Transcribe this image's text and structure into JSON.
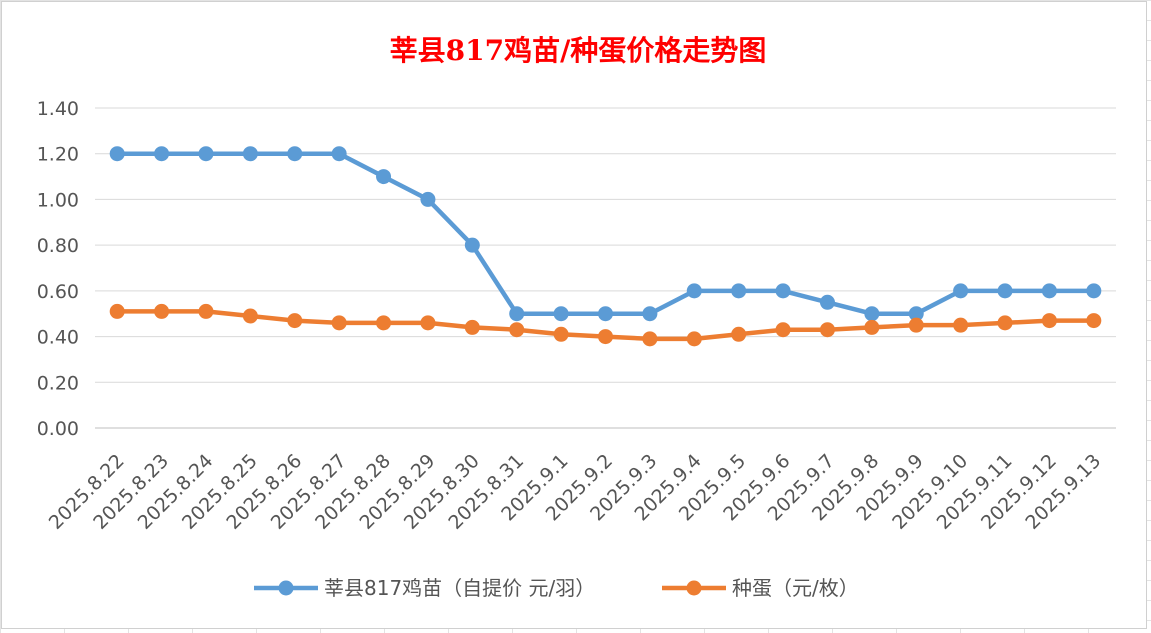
{
  "chart_data": {
    "type": "line",
    "title": "莘县817鸡苗/种蛋价格走势图",
    "categories": [
      "2025.8.22",
      "2025.8.23",
      "2025.8.24",
      "2025.8.25",
      "2025.8.26",
      "2025.8.27",
      "2025.8.28",
      "2025.8.29",
      "2025.8.30",
      "2025.8.31",
      "2025.9.1",
      "2025.9.2",
      "2025.9.3",
      "2025.9.4",
      "2025.9.5",
      "2025.9.6",
      "2025.9.7",
      "2025.9.8",
      "2025.9.9",
      "2025.9.10",
      "2025.9.11",
      "2025.9.12",
      "2025.9.13"
    ],
    "series": [
      {
        "name": "莘县817鸡苗（自提价 元/羽）",
        "color": "#5b9bd5",
        "values": [
          1.2,
          1.2,
          1.2,
          1.2,
          1.2,
          1.2,
          1.1,
          1.0,
          0.8,
          0.5,
          0.5,
          0.5,
          0.5,
          0.6,
          0.6,
          0.6,
          0.55,
          0.5,
          0.5,
          0.6,
          0.6,
          0.6,
          0.6
        ]
      },
      {
        "name": "种蛋（元/枚）",
        "color": "#ed7d31",
        "values": [
          0.51,
          0.51,
          0.51,
          0.49,
          0.47,
          0.46,
          0.46,
          0.46,
          0.44,
          0.43,
          0.41,
          0.4,
          0.39,
          0.39,
          0.41,
          0.43,
          0.43,
          0.44,
          0.45,
          0.45,
          0.46,
          0.47,
          0.47
        ]
      }
    ],
    "ylim": [
      0,
      1.4
    ],
    "yticks": [
      "0.00",
      "0.20",
      "0.40",
      "0.60",
      "0.80",
      "1.00",
      "1.20",
      "1.40"
    ],
    "grid": true,
    "legend_position": "bottom"
  }
}
